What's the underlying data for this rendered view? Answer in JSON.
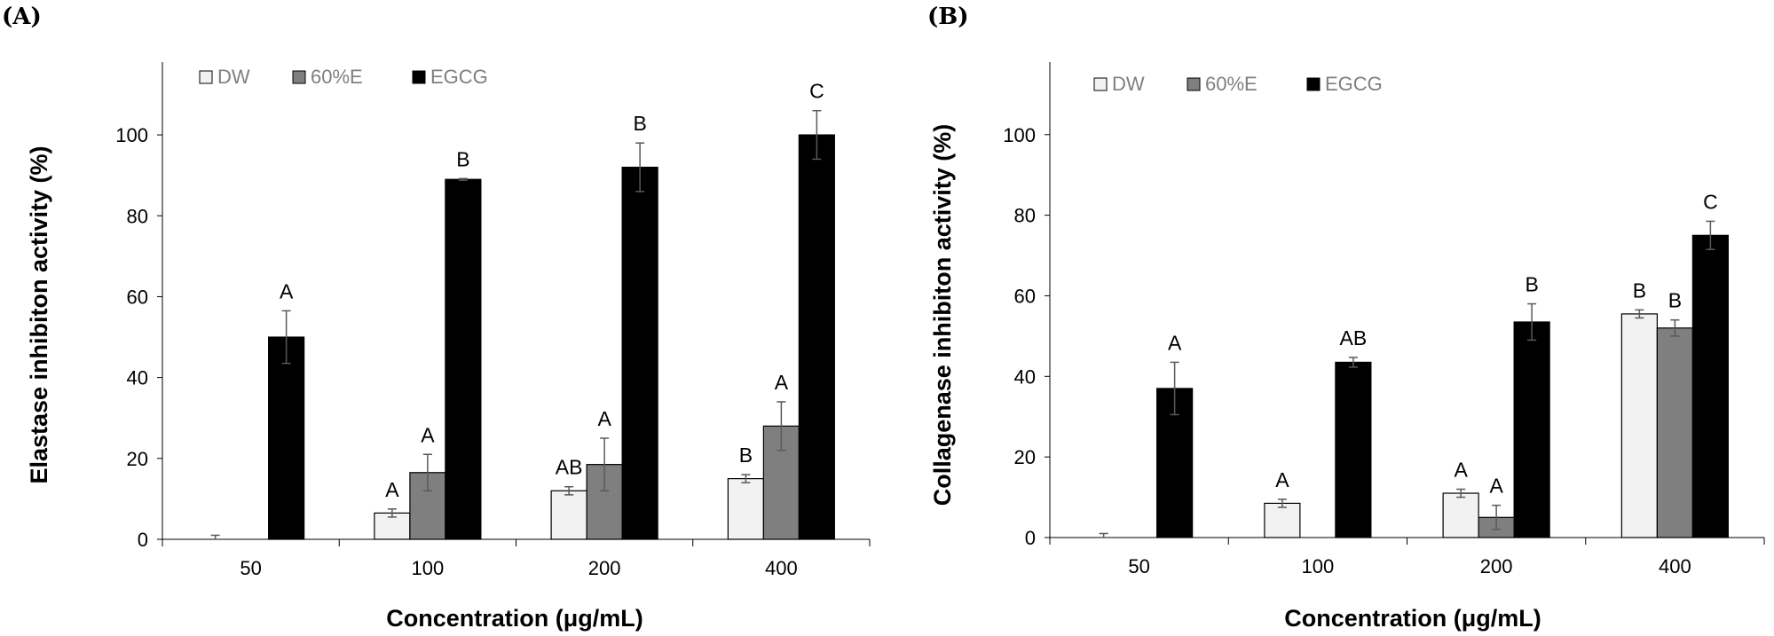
{
  "colors": {
    "DW": "#f2f2f2",
    "60%E": "#7f7f7f",
    "EGCG": "#000000"
  },
  "chart_data": [
    {
      "panel": "(A)",
      "type": "bar",
      "xlabel": "Concentration (μg/mL)",
      "ylabel": "Elastase inhibiton activity (%)",
      "ylim": [
        0,
        118
      ],
      "yticks": [
        0,
        20,
        40,
        60,
        80,
        100
      ],
      "categories": [
        "50",
        "100",
        "200",
        "400"
      ],
      "legend_position": "top-left",
      "series": [
        {
          "name": "DW",
          "values": [
            0,
            6.5,
            12,
            15
          ],
          "errors": [
            1,
            1,
            1,
            1
          ],
          "labels": [
            "",
            "A",
            "AB",
            "B"
          ]
        },
        {
          "name": "60%E",
          "values": [
            0,
            16.5,
            18.5,
            28
          ],
          "errors": [
            0,
            4.5,
            6.5,
            6
          ],
          "labels": [
            "",
            "A",
            "A",
            "A"
          ]
        },
        {
          "name": "EGCG",
          "values": [
            50,
            89,
            92,
            100
          ],
          "errors": [
            6.5,
            0.2,
            6,
            6
          ],
          "labels": [
            "A",
            "B",
            "B",
            "C"
          ]
        }
      ]
    },
    {
      "panel": "(B)",
      "type": "bar",
      "xlabel": "Concentration (μg/mL)",
      "ylabel": "Collagenase inhibiton activity (%)",
      "ylim": [
        0,
        118
      ],
      "yticks": [
        0,
        20,
        40,
        60,
        80,
        100
      ],
      "categories": [
        "50",
        "100",
        "200",
        "400"
      ],
      "legend_position": "top-left",
      "series": [
        {
          "name": "DW",
          "values": [
            0,
            8.5,
            11,
            55.5
          ],
          "errors": [
            1,
            1,
            1,
            1
          ],
          "labels": [
            "",
            "A",
            "A",
            "B"
          ]
        },
        {
          "name": "60%E",
          "values": [
            0,
            0,
            5,
            52
          ],
          "errors": [
            0,
            0,
            3,
            2
          ],
          "labels": [
            "",
            "",
            "A",
            "B"
          ]
        },
        {
          "name": "EGCG",
          "values": [
            37,
            43.5,
            53.5,
            75
          ],
          "errors": [
            6.5,
            1.2,
            4.5,
            3.5
          ],
          "labels": [
            "A",
            "AB",
            "B",
            "C"
          ]
        }
      ]
    }
  ]
}
